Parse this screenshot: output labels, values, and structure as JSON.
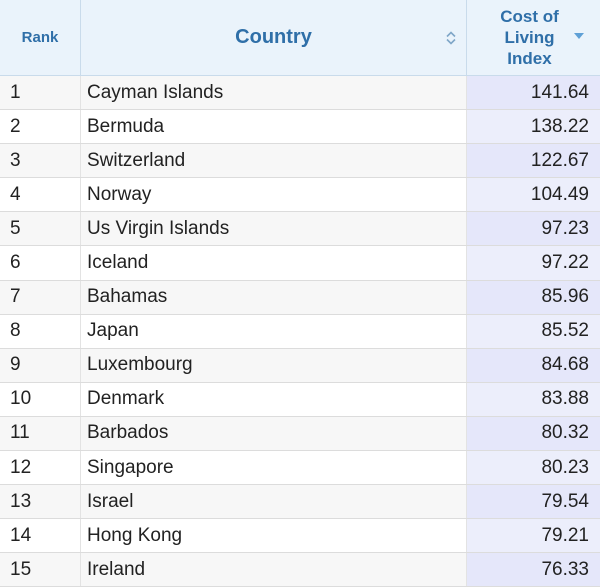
{
  "header": {
    "rank": "Rank",
    "country": "Country",
    "index_line1": "Cost of",
    "index_line2": "Living",
    "index_line3": "Index"
  },
  "sort": {
    "column": "Cost of Living Index",
    "direction": "descending"
  },
  "colors": {
    "header_bg": "#eaf3fb",
    "header_text": "#2f6fa8",
    "sorted_column_bg": "#e5e7fa"
  },
  "rows": [
    {
      "rank": "1",
      "country": "Cayman Islands",
      "index": "141.64"
    },
    {
      "rank": "2",
      "country": "Bermuda",
      "index": "138.22"
    },
    {
      "rank": "3",
      "country": "Switzerland",
      "index": "122.67"
    },
    {
      "rank": "4",
      "country": "Norway",
      "index": "104.49"
    },
    {
      "rank": "5",
      "country": "Us Virgin Islands",
      "index": "97.23"
    },
    {
      "rank": "6",
      "country": "Iceland",
      "index": "97.22"
    },
    {
      "rank": "7",
      "country": "Bahamas",
      "index": "85.96"
    },
    {
      "rank": "8",
      "country": "Japan",
      "index": "85.52"
    },
    {
      "rank": "9",
      "country": "Luxembourg",
      "index": "84.68"
    },
    {
      "rank": "10",
      "country": "Denmark",
      "index": "83.88"
    },
    {
      "rank": "11",
      "country": "Barbados",
      "index": "80.32"
    },
    {
      "rank": "12",
      "country": "Singapore",
      "index": "80.23"
    },
    {
      "rank": "13",
      "country": "Israel",
      "index": "79.54"
    },
    {
      "rank": "14",
      "country": "Hong Kong",
      "index": "79.21"
    },
    {
      "rank": "15",
      "country": "Ireland",
      "index": "76.33"
    }
  ]
}
